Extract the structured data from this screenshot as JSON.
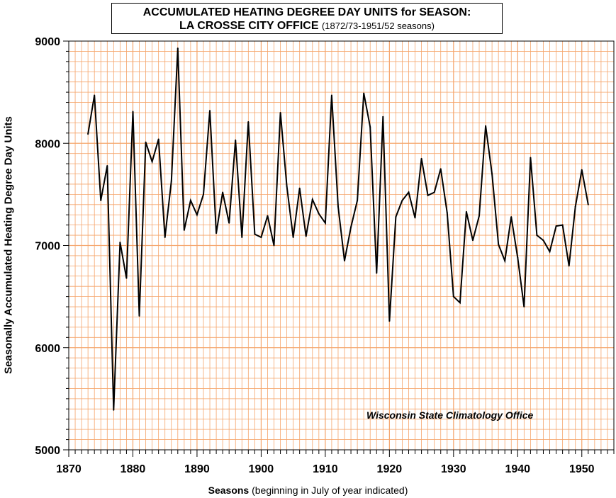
{
  "chart_data": {
    "type": "line",
    "title_line1": "ACCUMULATED HEATING DEGREE DAY UNITS for SEASON:",
    "title_line2": "LA CROSSE CITY OFFICE",
    "subtitle": "(1872/73-1951/52 seasons)",
    "xlabel_bold": "Seasons",
    "xlabel_rest": "(beginning in July of year indicated)",
    "ylabel": "Seasonally Accumulated Heating Degree Day Units",
    "annotation": "Wisconsin State Climatology Office",
    "xlim": [
      1870,
      1955
    ],
    "ylim": [
      5000,
      9000
    ],
    "x_ticks": [
      "1870",
      "1880",
      "1890",
      "1900",
      "1910",
      "1920",
      "1930",
      "1940",
      "1950"
    ],
    "y_ticks": [
      "5000",
      "6000",
      "7000",
      "8000",
      "9000"
    ],
    "grid": true,
    "line_color": "#000000",
    "grid_color": "#f5a46a",
    "series": [
      {
        "x": [
          1873,
          1874,
          1875,
          1876,
          1877,
          1878,
          1879,
          1880,
          1881,
          1882,
          1883,
          1884,
          1885,
          1886,
          1887,
          1888,
          1889,
          1890,
          1891,
          1892,
          1893,
          1894,
          1895,
          1896,
          1897,
          1898,
          1899,
          1900,
          1901,
          1902,
          1903,
          1904,
          1905,
          1906,
          1907,
          1908,
          1909,
          1910,
          1911,
          1912,
          1913,
          1914,
          1915,
          1916,
          1917,
          1918,
          1919,
          1920,
          1921,
          1922,
          1923,
          1924,
          1925,
          1926,
          1927,
          1928,
          1929,
          1930,
          1931,
          1932,
          1933,
          1934,
          1935,
          1936,
          1937,
          1938,
          1939,
          1940,
          1941,
          1942,
          1943,
          1944,
          1945,
          1946,
          1947,
          1948,
          1949,
          1950,
          1951
        ],
        "values": [
          8090,
          8470,
          7440,
          7780,
          5390,
          7030,
          6680,
          8310,
          6310,
          8010,
          7820,
          8040,
          7080,
          7630,
          8930,
          7150,
          7440,
          7300,
          7500,
          8320,
          7120,
          7520,
          7220,
          8030,
          7080,
          8210,
          7110,
          7080,
          7290,
          7000,
          8300,
          7580,
          7080,
          7560,
          7090,
          7450,
          7310,
          7220,
          8470,
          7380,
          6850,
          7180,
          7440,
          8490,
          8160,
          6730,
          8260,
          6260,
          7280,
          7440,
          7520,
          7270,
          7850,
          7490,
          7520,
          7750,
          7320,
          6500,
          6440,
          7330,
          7050,
          7290,
          8170,
          7700,
          7010,
          6850,
          7280,
          6880,
          6400,
          7860,
          7100,
          7050,
          6940,
          7190,
          7200,
          6800,
          7380,
          7740,
          7400
        ]
      }
    ]
  }
}
